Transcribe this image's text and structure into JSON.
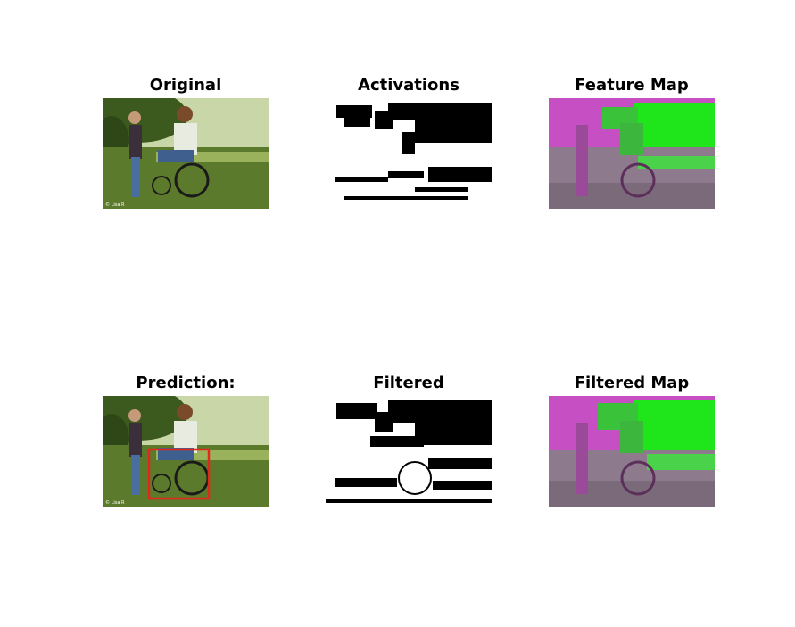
{
  "figure": {
    "panels": [
      {
        "title": "Original",
        "kind": "photo"
      },
      {
        "title": "Activations",
        "kind": "binary-mask"
      },
      {
        "title": "Feature Map",
        "kind": "false-color"
      },
      {
        "title": "Prediction:",
        "kind": "photo-with-box",
        "box_color": "#e0291a"
      },
      {
        "title": "Filtered",
        "kind": "binary-mask"
      },
      {
        "title": "Filtered Map",
        "kind": "false-color"
      }
    ],
    "colors": {
      "grass": "#5c7a2c",
      "foliage": "#3d5a1e",
      "magenta": "#c74fc4",
      "green": "#1ee61a",
      "box": "#e0291a"
    }
  }
}
